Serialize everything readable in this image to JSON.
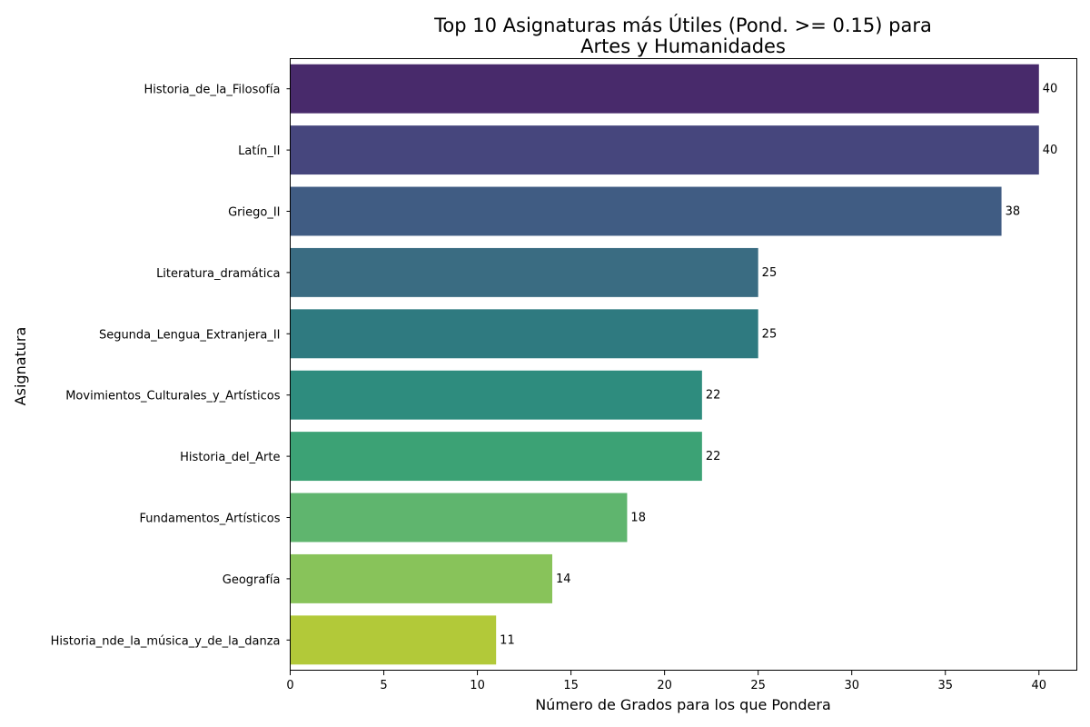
{
  "chart_data": {
    "type": "bar",
    "orientation": "horizontal",
    "title_lines": [
      "Top 10 Asignaturas más Útiles (Pond. >= 0.15) para",
      "Artes y Humanidades"
    ],
    "xlabel": "Número de Grados para los que Pondera",
    "ylabel": "Asignatura",
    "xlim": [
      0,
      42
    ],
    "xticks": [
      0,
      5,
      10,
      15,
      20,
      25,
      30,
      35,
      40
    ],
    "grid": false,
    "legend": "none",
    "categories": [
      "Historia_de_la_Filosofía",
      "Latín_II",
      "Griego_II",
      "Literatura_dramática",
      "Segunda_Lengua_Extranjera_II",
      "Movimientos_Culturales_y_Artísticos",
      "Historia_del_Arte",
      "Fundamentos_Artísticos",
      "Geografía",
      "Historia_nde_la_música_y_de_la_danza"
    ],
    "values": [
      40,
      40,
      38,
      25,
      25,
      22,
      22,
      18,
      14,
      11
    ],
    "colors": [
      "#482a6b",
      "#46467d",
      "#405c83",
      "#3a6c82",
      "#2f7a80",
      "#2e8c7e",
      "#3ca275",
      "#5fb56e",
      "#88c35a",
      "#b2c939"
    ]
  }
}
